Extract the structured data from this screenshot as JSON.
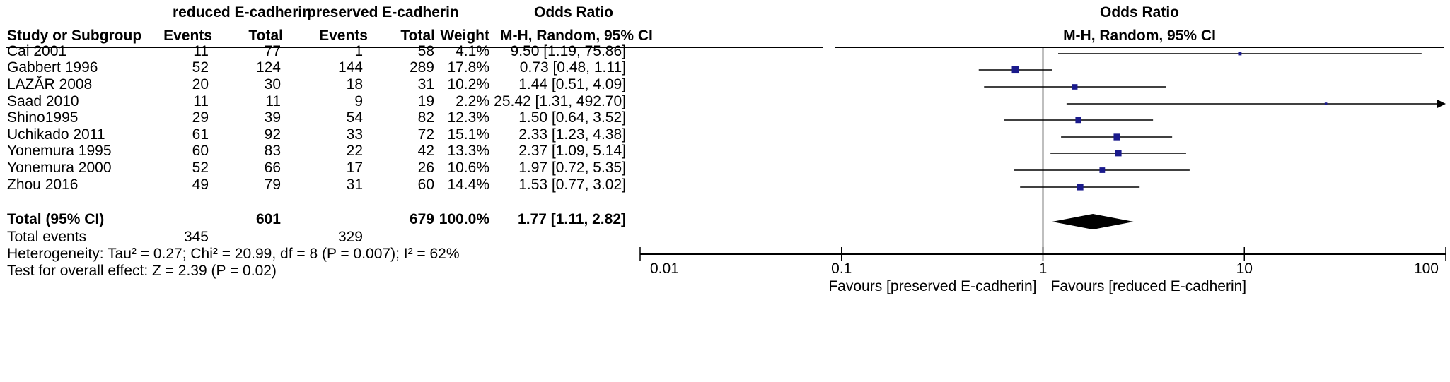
{
  "header": {
    "group1": "reduced E-cadherin",
    "group2": "preserved E-cadherin",
    "odds_ratio": "Odds Ratio",
    "study": "Study or Subgroup",
    "events": "Events",
    "total": "Total",
    "weight": "Weight",
    "method": "M-H, Random, 95% CI"
  },
  "plot_header": {
    "title": "Odds Ratio",
    "method": "M-H, Random, 95% CI"
  },
  "studies": [
    {
      "name": "Cai 2001",
      "e1": "11",
      "t1": "77",
      "e2": "1",
      "t2": "58",
      "weight": "4.1%",
      "ci": "9.50 [1.19, 75.86]"
    },
    {
      "name": "Gabbert 1996",
      "e1": "52",
      "t1": "124",
      "e2": "144",
      "t2": "289",
      "weight": "17.8%",
      "ci": "0.73 [0.48, 1.11]"
    },
    {
      "name": "LAZĂR 2008",
      "e1": "20",
      "t1": "30",
      "e2": "18",
      "t2": "31",
      "weight": "10.2%",
      "ci": "1.44 [0.51, 4.09]"
    },
    {
      "name": "Saad 2010",
      "e1": "11",
      "t1": "11",
      "e2": "9",
      "t2": "19",
      "weight": "2.2%",
      "ci": "25.42 [1.31, 492.70]"
    },
    {
      "name": "Shino1995",
      "e1": "29",
      "t1": "39",
      "e2": "54",
      "t2": "82",
      "weight": "12.3%",
      "ci": "1.50 [0.64, 3.52]"
    },
    {
      "name": "Uchikado  2011",
      "e1": "61",
      "t1": "92",
      "e2": "33",
      "t2": "72",
      "weight": "15.1%",
      "ci": "2.33 [1.23, 4.38]"
    },
    {
      "name": "Yonemura 1995",
      "e1": "60",
      "t1": "83",
      "e2": "22",
      "t2": "42",
      "weight": "13.3%",
      "ci": "2.37 [1.09, 5.14]"
    },
    {
      "name": "Yonemura 2000",
      "e1": "52",
      "t1": "66",
      "e2": "17",
      "t2": "26",
      "weight": "10.6%",
      "ci": "1.97 [0.72, 5.35]"
    },
    {
      "name": "Zhou 2016",
      "e1": "49",
      "t1": "79",
      "e2": "31",
      "t2": "60",
      "weight": "14.4%",
      "ci": "1.53 [0.77, 3.02]"
    }
  ],
  "total": {
    "label": "Total (95% CI)",
    "t1": "601",
    "t2": "679",
    "weight": "100.0%",
    "ci": "1.77 [1.11, 2.82]"
  },
  "total_events": {
    "label": "Total events",
    "e1": "345",
    "e2": "329"
  },
  "heterogeneity": "Heterogeneity: Tau² = 0.27; Chi² = 20.99, df = 8 (P = 0.007); I² = 62%",
  "overall_effect": "Test for overall effect: Z = 2.39 (P = 0.02)",
  "colors": {
    "marker": "#1a1a8c",
    "diamond": "#000000",
    "line": "#000000"
  },
  "chart_data": {
    "type": "scatter",
    "title": "Odds Ratio",
    "subtitle": "M-H, Random, 95% CI",
    "x_scale": "log",
    "xlim": [
      0.01,
      100
    ],
    "x_ticks": [
      "0.01",
      "0.1",
      "1",
      "10",
      "100"
    ],
    "x_tick_values": [
      0.01,
      0.1,
      1,
      10,
      100
    ],
    "favours_left": "Favours [preserved E-cadherin]",
    "favours_right": "Favours [reduced E-cadherin]",
    "studies": [
      {
        "name": "Cai 2001",
        "or": 9.5,
        "lo": 1.19,
        "hi": 75.86,
        "weight": 4.1
      },
      {
        "name": "Gabbert 1996",
        "or": 0.73,
        "lo": 0.48,
        "hi": 1.11,
        "weight": 17.8
      },
      {
        "name": "LAZĂR 2008",
        "or": 1.44,
        "lo": 0.51,
        "hi": 4.09,
        "weight": 10.2
      },
      {
        "name": "Saad 2010",
        "or": 25.42,
        "lo": 1.31,
        "hi": 492.7,
        "weight": 2.2
      },
      {
        "name": "Shino1995",
        "or": 1.5,
        "lo": 0.64,
        "hi": 3.52,
        "weight": 12.3
      },
      {
        "name": "Uchikado  2011",
        "or": 2.33,
        "lo": 1.23,
        "hi": 4.38,
        "weight": 15.1
      },
      {
        "name": "Yonemura 1995",
        "or": 2.37,
        "lo": 1.09,
        "hi": 5.14,
        "weight": 13.3
      },
      {
        "name": "Yonemura 2000",
        "or": 1.97,
        "lo": 0.72,
        "hi": 5.35,
        "weight": 10.6
      },
      {
        "name": "Zhou 2016",
        "or": 1.53,
        "lo": 0.77,
        "hi": 3.02,
        "weight": 14.4
      }
    ],
    "pooled": {
      "or": 1.77,
      "lo": 1.11,
      "hi": 2.82
    }
  }
}
